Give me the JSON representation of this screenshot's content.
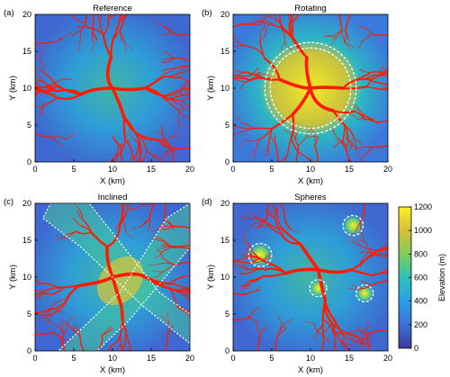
{
  "chart_data": [
    {
      "type": "heatmap",
      "panel_letter": "(a)",
      "title": "Reference",
      "xlabel": "X (km)",
      "ylabel": "Y (km)",
      "xlim": [
        0,
        20
      ],
      "ylim": [
        0,
        20
      ],
      "xticks": [
        0,
        5,
        10,
        15,
        20
      ],
      "yticks": [
        0,
        5,
        10,
        15,
        20
      ],
      "uplift_pattern": "uniform"
    },
    {
      "type": "heatmap",
      "panel_letter": "(b)",
      "title": "Rotating",
      "xlabel": "X (km)",
      "ylabel": "Y (km)",
      "xlim": [
        0,
        20
      ],
      "ylim": [
        0,
        20
      ],
      "xticks": [
        0,
        5,
        10,
        15,
        20
      ],
      "yticks": [
        0,
        5,
        10,
        15,
        20
      ],
      "uplift_pattern": "rotating disk centred at (10,10), radius ~5 km"
    },
    {
      "type": "heatmap",
      "panel_letter": "(c)",
      "title": "Inclined",
      "xlabel": "X (km)",
      "ylabel": "Y (km)",
      "xlim": [
        0,
        20
      ],
      "ylim": [
        0,
        20
      ],
      "xticks": [
        0,
        5,
        10,
        15,
        20
      ],
      "yticks": [
        0,
        5,
        10,
        15,
        20
      ],
      "uplift_pattern": "inclined bands"
    },
    {
      "type": "heatmap",
      "panel_letter": "(d)",
      "title": "Spheres",
      "xlabel": "X (km)",
      "ylabel": "Y (km)",
      "xlim": [
        0,
        20
      ],
      "ylim": [
        0,
        20
      ],
      "xticks": [
        0,
        5,
        10,
        15,
        20
      ],
      "yticks": [
        0,
        5,
        10,
        15,
        20
      ],
      "uplift_pattern": "spherical bumps",
      "spheres": [
        {
          "x": 3.5,
          "y": 13,
          "r": 1.5
        },
        {
          "x": 15.5,
          "y": 17,
          "r": 1.3
        },
        {
          "x": 11,
          "y": 8.5,
          "r": 1.1
        },
        {
          "x": 17,
          "y": 7.8,
          "r": 1.1
        }
      ]
    }
  ],
  "colorbar": {
    "label": "Elevation (m)",
    "min": 0,
    "max": 1200,
    "ticks": [
      0,
      200,
      400,
      600,
      800,
      1000,
      1200
    ],
    "colors": [
      "#3b3b9e",
      "#3f6fd8",
      "#2aa0e6",
      "#2dc1b6",
      "#7fcc5a",
      "#d8bf3a",
      "#f9f021"
    ]
  },
  "river_color": "#ff1a00"
}
